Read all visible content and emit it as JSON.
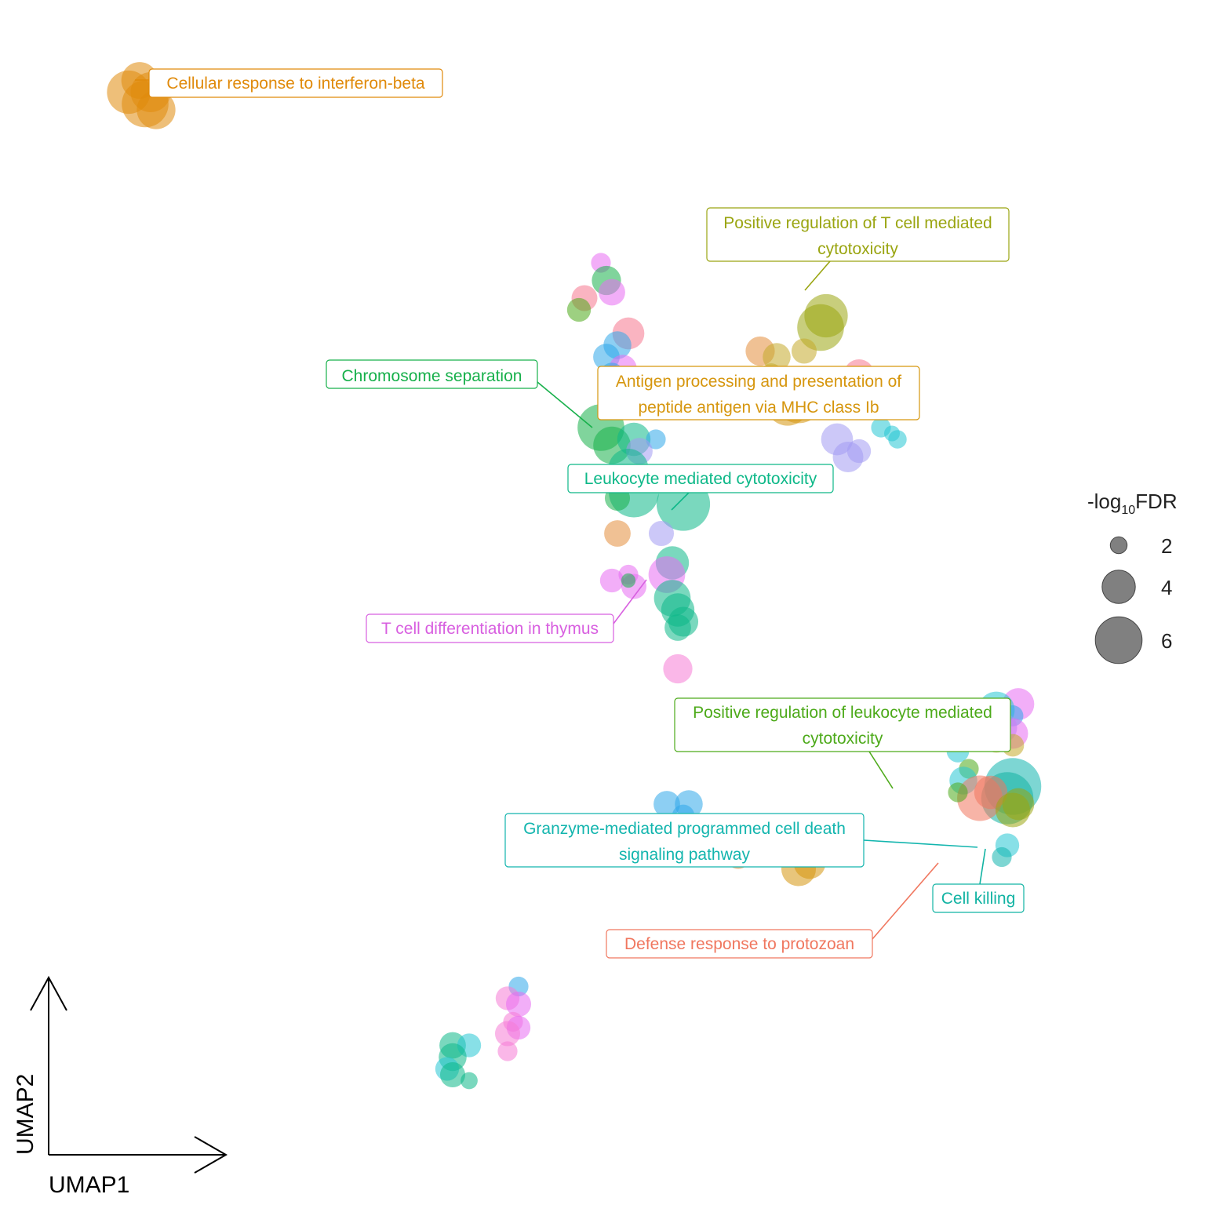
{
  "chart_data": {
    "type": "scatter",
    "xlabel": "UMAP1",
    "ylabel": "UMAP2",
    "grid": false,
    "legend": {
      "title_prefix": "-log",
      "title_subscript": "10",
      "title_suffix": "FDR",
      "placement": "right",
      "sizes": [
        {
          "value": 2,
          "label": "2"
        },
        {
          "value": 4,
          "label": "4"
        },
        {
          "value": 6,
          "label": "6"
        }
      ]
    },
    "colors": {
      "interferon_beta": "#E08A0B",
      "t_cell_cytotoxicity": "#9AA511",
      "chromosome_separation": "#17B04B",
      "antigen_mhc_ib": "#D6960E",
      "leukocyte_cytotoxicity": "#0DB888",
      "t_cell_thymus": "#D85FE0",
      "pos_reg_leukocyte": "#4DAA1A",
      "granzyme": "#13B5AE",
      "cell_killing": "#12B3A3",
      "defense_protozoan": "#F0775F",
      "pink": "#F6768E",
      "blue": "#2FA8EA",
      "cyan": "#27C6D4",
      "lavender": "#A39BF2",
      "magenta": "#E76BF3",
      "light_pink": "#F57BD6",
      "olive": "#C4A92A",
      "orange": "#E38E3C"
    },
    "annotations": [
      {
        "id": "interferon_beta",
        "text": "Cellular response to interferon-beta",
        "color_key": "interferon_beta"
      },
      {
        "id": "t_cell_cytotoxicity",
        "text": "Positive regulation of T cell mediated cytotoxicity",
        "color_key": "t_cell_cytotoxicity"
      },
      {
        "id": "chromosome_separation",
        "text": "Chromosome separation",
        "color_key": "chromosome_separation"
      },
      {
        "id": "antigen_mhc_ib",
        "text": "Antigen processing and presentation of peptide antigen via MHC class Ib",
        "color_key": "antigen_mhc_ib"
      },
      {
        "id": "leukocyte_cytotoxicity",
        "text": "Leukocyte mediated cytotoxicity",
        "color_key": "leukocyte_cytotoxicity"
      },
      {
        "id": "t_cell_thymus",
        "text": "T cell differentiation in thymus",
        "color_key": "t_cell_thymus"
      },
      {
        "id": "pos_reg_leukocyte",
        "text": "Positive regulation of leukocyte mediated cytotoxicity",
        "color_key": "pos_reg_leukocyte"
      },
      {
        "id": "granzyme",
        "text": "Granzyme-mediated programmed cell death signaling pathway",
        "color_key": "granzyme"
      },
      {
        "id": "cell_killing",
        "text": "Cell killing",
        "color_key": "cell_killing"
      },
      {
        "id": "defense_protozoan",
        "text": "Defense response to protozoan",
        "color_key": "defense_protozoan"
      }
    ],
    "points": [
      {
        "x": 1.2,
        "y": 14.3,
        "fdr": 5.5,
        "c": "interferon_beta"
      },
      {
        "x": 1.5,
        "y": 14.1,
        "fdr": 6.0,
        "c": "interferon_beta"
      },
      {
        "x": 1.4,
        "y": 14.5,
        "fdr": 4.5,
        "c": "interferon_beta"
      },
      {
        "x": 1.6,
        "y": 14.3,
        "fdr": 5.0,
        "c": "interferon_beta"
      },
      {
        "x": 1.7,
        "y": 14.0,
        "fdr": 4.8,
        "c": "interferon_beta"
      },
      {
        "x": 9.8,
        "y": 11.4,
        "fdr": 2.0,
        "c": "magenta"
      },
      {
        "x": 9.9,
        "y": 11.1,
        "fdr": 3.4,
        "c": "chromosome_separation"
      },
      {
        "x": 10.0,
        "y": 10.9,
        "fdr": 3.0,
        "c": "magenta"
      },
      {
        "x": 9.5,
        "y": 10.8,
        "fdr": 2.9,
        "c": "pink"
      },
      {
        "x": 9.4,
        "y": 10.6,
        "fdr": 2.6,
        "c": "pos_reg_leukocyte"
      },
      {
        "x": 10.3,
        "y": 10.2,
        "fdr": 3.8,
        "c": "pink"
      },
      {
        "x": 10.1,
        "y": 10.0,
        "fdr": 3.2,
        "c": "blue"
      },
      {
        "x": 9.9,
        "y": 9.8,
        "fdr": 3.0,
        "c": "blue"
      },
      {
        "x": 10.2,
        "y": 9.6,
        "fdr": 3.2,
        "c": "magenta"
      },
      {
        "x": 10.0,
        "y": 9.5,
        "fdr": 2.6,
        "c": "blue"
      },
      {
        "x": 13.8,
        "y": 10.3,
        "fdr": 6.0,
        "c": "t_cell_cytotoxicity"
      },
      {
        "x": 13.9,
        "y": 10.5,
        "fdr": 5.5,
        "c": "t_cell_cytotoxicity"
      },
      {
        "x": 12.7,
        "y": 9.9,
        "fdr": 3.4,
        "c": "orange"
      },
      {
        "x": 13.0,
        "y": 9.8,
        "fdr": 3.2,
        "c": "olive"
      },
      {
        "x": 13.5,
        "y": 9.9,
        "fdr": 2.8,
        "c": "olive"
      },
      {
        "x": 12.9,
        "y": 9.5,
        "fdr": 2.4,
        "c": "olive"
      },
      {
        "x": 13.4,
        "y": 9.1,
        "fdr": 6.5,
        "c": "antigen_mhc_ib"
      },
      {
        "x": 13.2,
        "y": 9.0,
        "fdr": 5.5,
        "c": "antigen_mhc_ib"
      },
      {
        "x": 14.5,
        "y": 9.5,
        "fdr": 3.6,
        "c": "pink"
      },
      {
        "x": 14.7,
        "y": 9.3,
        "fdr": 2.8,
        "c": "pink"
      },
      {
        "x": 14.9,
        "y": 9.0,
        "fdr": 3.4,
        "c": "cyan"
      },
      {
        "x": 14.9,
        "y": 8.6,
        "fdr": 2.0,
        "c": "cyan"
      },
      {
        "x": 15.1,
        "y": 8.5,
        "fdr": 1.4,
        "c": "cyan"
      },
      {
        "x": 15.2,
        "y": 8.4,
        "fdr": 1.8,
        "c": "cyan"
      },
      {
        "x": 14.1,
        "y": 8.4,
        "fdr": 3.8,
        "c": "lavender"
      },
      {
        "x": 14.3,
        "y": 8.1,
        "fdr": 3.6,
        "c": "lavender"
      },
      {
        "x": 14.5,
        "y": 8.2,
        "fdr": 2.6,
        "c": "lavender"
      },
      {
        "x": 9.8,
        "y": 8.6,
        "fdr": 6.0,
        "c": "chromosome_separation"
      },
      {
        "x": 10.0,
        "y": 8.3,
        "fdr": 4.6,
        "c": "chromosome_separation"
      },
      {
        "x": 10.4,
        "y": 8.4,
        "fdr": 4.0,
        "c": "leukocyte_cytotoxicity"
      },
      {
        "x": 10.8,
        "y": 8.4,
        "fdr": 2.0,
        "c": "blue"
      },
      {
        "x": 10.5,
        "y": 8.2,
        "fdr": 3.0,
        "c": "lavender"
      },
      {
        "x": 10.3,
        "y": 7.9,
        "fdr": 5.0,
        "c": "leukocyte_cytotoxicity"
      },
      {
        "x": 10.4,
        "y": 7.5,
        "fdr": 6.5,
        "c": "leukocyte_cytotoxicity"
      },
      {
        "x": 11.3,
        "y": 7.3,
        "fdr": 7.0,
        "c": "leukocyte_cytotoxicity"
      },
      {
        "x": 10.1,
        "y": 7.4,
        "fdr": 2.8,
        "c": "chromosome_separation"
      },
      {
        "x": 10.1,
        "y": 6.8,
        "fdr": 3.0,
        "c": "orange"
      },
      {
        "x": 10.9,
        "y": 6.8,
        "fdr": 2.8,
        "c": "lavender"
      },
      {
        "x": 11.1,
        "y": 6.3,
        "fdr": 4.0,
        "c": "leukocyte_cytotoxicity"
      },
      {
        "x": 11.0,
        "y": 6.1,
        "fdr": 4.5,
        "c": "magenta"
      },
      {
        "x": 10.3,
        "y": 6.1,
        "fdr": 2.0,
        "c": "magenta"
      },
      {
        "x": 10.0,
        "y": 6.0,
        "fdr": 2.6,
        "c": "magenta"
      },
      {
        "x": 10.4,
        "y": 5.9,
        "fdr": 2.8,
        "c": "magenta"
      },
      {
        "x": 10.3,
        "y": 6.0,
        "fdr": 1.2,
        "c": "chromosome_separation"
      },
      {
        "x": 11.1,
        "y": 5.7,
        "fdr": 4.5,
        "c": "leukocyte_cytotoxicity"
      },
      {
        "x": 11.2,
        "y": 5.5,
        "fdr": 4.0,
        "c": "leukocyte_cytotoxicity"
      },
      {
        "x": 11.3,
        "y": 5.3,
        "fdr": 3.5,
        "c": "leukocyte_cytotoxicity"
      },
      {
        "x": 11.2,
        "y": 5.2,
        "fdr": 3.0,
        "c": "leukocyte_cytotoxicity"
      },
      {
        "x": 11.2,
        "y": 4.5,
        "fdr": 3.4,
        "c": "light_pink"
      },
      {
        "x": 17.4,
        "y": 3.9,
        "fdr": 3.8,
        "c": "magenta"
      },
      {
        "x": 17.0,
        "y": 3.8,
        "fdr": 4.5,
        "c": "cyan"
      },
      {
        "x": 17.3,
        "y": 3.7,
        "fdr": 2.2,
        "c": "blue"
      },
      {
        "x": 16.9,
        "y": 3.6,
        "fdr": 2.4,
        "c": "olive"
      },
      {
        "x": 17.1,
        "y": 3.5,
        "fdr": 3.6,
        "c": "lavender"
      },
      {
        "x": 17.3,
        "y": 3.4,
        "fdr": 3.6,
        "c": "magenta"
      },
      {
        "x": 17.0,
        "y": 3.3,
        "fdr": 3.0,
        "c": "olive"
      },
      {
        "x": 17.3,
        "y": 3.2,
        "fdr": 2.4,
        "c": "olive"
      },
      {
        "x": 15.9,
        "y": 3.5,
        "fdr": 4.4,
        "c": "pos_reg_leukocyte"
      },
      {
        "x": 16.3,
        "y": 3.4,
        "fdr": 4.0,
        "c": "cyan"
      },
      {
        "x": 16.1,
        "y": 3.3,
        "fdr": 2.4,
        "c": "pos_reg_leukocyte"
      },
      {
        "x": 16.3,
        "y": 3.1,
        "fdr": 2.4,
        "c": "cyan"
      },
      {
        "x": 16.5,
        "y": 2.8,
        "fdr": 2.0,
        "c": "pos_reg_leukocyte"
      },
      {
        "x": 16.4,
        "y": 2.6,
        "fdr": 3.2,
        "c": "cyan"
      },
      {
        "x": 17.3,
        "y": 2.5,
        "fdr": 7.5,
        "c": "granzyme"
      },
      {
        "x": 17.2,
        "y": 2.3,
        "fdr": 6.8,
        "c": "cell_killing"
      },
      {
        "x": 16.7,
        "y": 2.3,
        "fdr": 5.8,
        "c": "defense_protozoan"
      },
      {
        "x": 16.9,
        "y": 2.4,
        "fdr": 4.0,
        "c": "defense_protozoan"
      },
      {
        "x": 17.3,
        "y": 2.1,
        "fdr": 4.2,
        "c": "t_cell_cytotoxicity"
      },
      {
        "x": 17.4,
        "y": 2.2,
        "fdr": 3.8,
        "c": "t_cell_cytotoxicity"
      },
      {
        "x": 16.3,
        "y": 2.4,
        "fdr": 2.0,
        "c": "pos_reg_leukocyte"
      },
      {
        "x": 17.2,
        "y": 1.5,
        "fdr": 2.6,
        "c": "cyan"
      },
      {
        "x": 17.1,
        "y": 1.3,
        "fdr": 2.0,
        "c": "granzyme"
      },
      {
        "x": 11.0,
        "y": 2.2,
        "fdr": 3.0,
        "c": "blue"
      },
      {
        "x": 11.4,
        "y": 2.2,
        "fdr": 3.2,
        "c": "blue"
      },
      {
        "x": 11.3,
        "y": 2.0,
        "fdr": 2.4,
        "c": "blue"
      },
      {
        "x": 12.1,
        "y": 1.4,
        "fdr": 3.0,
        "c": "orange"
      },
      {
        "x": 12.3,
        "y": 1.3,
        "fdr": 2.6,
        "c": "orange"
      },
      {
        "x": 12.4,
        "y": 1.4,
        "fdr": 2.6,
        "c": "pink"
      },
      {
        "x": 12.6,
        "y": 1.5,
        "fdr": 1.8,
        "c": "orange"
      },
      {
        "x": 13.6,
        "y": 1.2,
        "fdr": 3.8,
        "c": "antigen_mhc_ib"
      },
      {
        "x": 13.4,
        "y": 1.1,
        "fdr": 4.2,
        "c": "antigen_mhc_ib"
      },
      {
        "x": 8.3,
        "y": -0.9,
        "fdr": 2.0,
        "c": "blue"
      },
      {
        "x": 8.1,
        "y": -1.1,
        "fdr": 2.6,
        "c": "light_pink"
      },
      {
        "x": 8.3,
        "y": -1.2,
        "fdr": 2.8,
        "c": "magenta"
      },
      {
        "x": 8.2,
        "y": -1.5,
        "fdr": 2.0,
        "c": "light_pink"
      },
      {
        "x": 8.3,
        "y": -1.6,
        "fdr": 2.6,
        "c": "magenta"
      },
      {
        "x": 8.1,
        "y": -1.7,
        "fdr": 2.8,
        "c": "light_pink"
      },
      {
        "x": 8.1,
        "y": -2.0,
        "fdr": 2.0,
        "c": "light_pink"
      },
      {
        "x": 7.1,
        "y": -1.9,
        "fdr": 3.0,
        "c": "leukocyte_cytotoxicity"
      },
      {
        "x": 7.4,
        "y": -1.9,
        "fdr": 2.6,
        "c": "cyan"
      },
      {
        "x": 7.1,
        "y": -2.1,
        "fdr": 3.2,
        "c": "leukocyte_cytotoxicity"
      },
      {
        "x": 7.0,
        "y": -2.3,
        "fdr": 2.6,
        "c": "cyan"
      },
      {
        "x": 7.1,
        "y": -2.4,
        "fdr": 2.8,
        "c": "leukocyte_cytotoxicity"
      },
      {
        "x": 7.4,
        "y": -2.5,
        "fdr": 1.6,
        "c": "leukocyte_cytotoxicity"
      }
    ]
  }
}
